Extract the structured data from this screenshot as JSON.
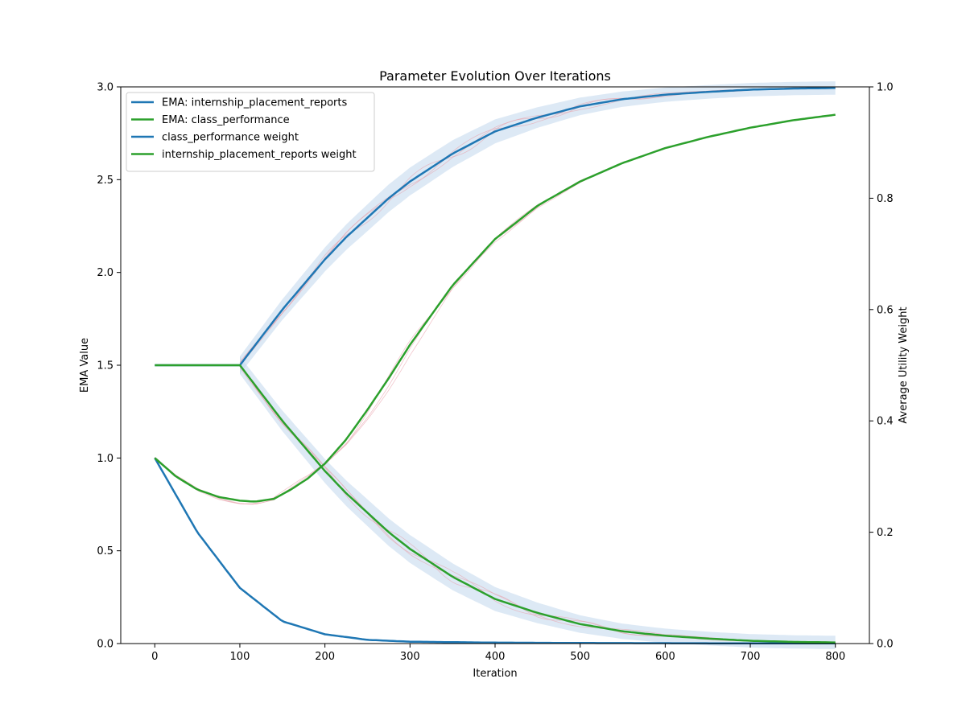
{
  "chart_data": {
    "type": "line",
    "title": "Parameter Evolution Over Iterations",
    "xlabel": "Iteration",
    "ylabel_left": "EMA Value",
    "ylabel_right": "Average Utility Weight",
    "xlim": [
      -40,
      840
    ],
    "ylim_left": [
      0,
      3
    ],
    "ylim_right": [
      0,
      1
    ],
    "x_ticks": [
      0,
      100,
      200,
      300,
      400,
      500,
      600,
      700,
      800
    ],
    "y_ticks_left": [
      "0.0",
      "0.5",
      "1.0",
      "1.5",
      "2.0",
      "2.5",
      "3.0"
    ],
    "y_ticks_right": [
      "0.0",
      "0.2",
      "0.4",
      "0.6",
      "0.8",
      "1.0"
    ],
    "grid": false,
    "legend_position": "top-left",
    "colors": {
      "blue": "#1f77b4",
      "green": "#2ca02c",
      "band": "#c6dbef",
      "noise": "#e8a0aa"
    },
    "series": [
      {
        "name": "EMA: internship_placement_reports",
        "axis": "left",
        "color": "#1f77b4",
        "x": [
          0,
          50,
          100,
          150,
          200,
          250,
          300,
          400,
          500,
          600,
          700,
          800
        ],
        "values": [
          1.0,
          0.6,
          0.3,
          0.12,
          0.05,
          0.02,
          0.01,
          0.005,
          0.003,
          0.002,
          0.001,
          0.001
        ]
      },
      {
        "name": "EMA: class_performance",
        "axis": "left",
        "color": "#2ca02c",
        "x": [
          0,
          25,
          50,
          75,
          100,
          118,
          140,
          160,
          180,
          200,
          225,
          250,
          275,
          300,
          350,
          400,
          450,
          500,
          550,
          600,
          650,
          700,
          750,
          800
        ],
        "values": [
          1.0,
          0.9,
          0.83,
          0.79,
          0.77,
          0.765,
          0.78,
          0.83,
          0.89,
          0.97,
          1.1,
          1.26,
          1.43,
          1.61,
          1.93,
          2.18,
          2.36,
          2.49,
          2.59,
          2.67,
          2.73,
          2.78,
          2.82,
          2.85
        ]
      },
      {
        "name": "class_performance weight",
        "axis": "right",
        "color": "#1f77b4",
        "x": [
          0,
          100,
          125,
          150,
          175,
          200,
          225,
          250,
          275,
          300,
          325,
          350,
          400,
          450,
          500,
          550,
          600,
          650,
          700,
          750,
          800
        ],
        "values": [
          0.5,
          0.5,
          0.55,
          0.6,
          0.645,
          0.69,
          0.73,
          0.765,
          0.8,
          0.83,
          0.855,
          0.88,
          0.92,
          0.945,
          0.965,
          0.978,
          0.986,
          0.991,
          0.995,
          0.997,
          0.998
        ]
      },
      {
        "name": "internship_placement_reports weight",
        "axis": "right",
        "color": "#2ca02c",
        "x": [
          0,
          100,
          125,
          150,
          175,
          200,
          225,
          250,
          275,
          300,
          325,
          350,
          400,
          450,
          500,
          550,
          600,
          650,
          700,
          750,
          800
        ],
        "values": [
          0.5,
          0.5,
          0.45,
          0.4,
          0.355,
          0.31,
          0.27,
          0.235,
          0.2,
          0.17,
          0.145,
          0.12,
          0.08,
          0.055,
          0.035,
          0.022,
          0.014,
          0.009,
          0.005,
          0.003,
          0.002
        ]
      }
    ]
  }
}
